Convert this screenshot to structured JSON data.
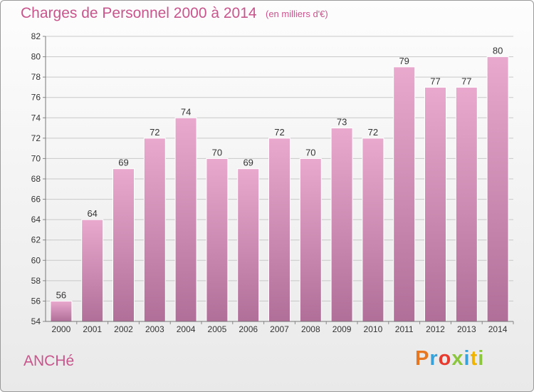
{
  "header": {
    "title": "Charges de Personnel 2000 à 2014",
    "subtitle": "(en milliers d'€)"
  },
  "footer": {
    "commune": "ANCHé",
    "logo_text": "Proxiti",
    "logo_colors": [
      "#e87722",
      "#3aa0d8",
      "#e63b2e",
      "#8cc63f",
      "#3aa0d8",
      "#f0b400",
      "#8cc63f"
    ]
  },
  "colors": {
    "bar_top": "#e9a9ce",
    "bar_bottom": "#b06f98",
    "title": "#c8558c"
  },
  "chart_data": {
    "type": "bar",
    "categories": [
      "2000",
      "2001",
      "2002",
      "2003",
      "2004",
      "2005",
      "2006",
      "2007",
      "2008",
      "2009",
      "2010",
      "2011",
      "2012",
      "2013",
      "2014"
    ],
    "values": [
      56,
      64,
      69,
      72,
      74,
      70,
      69,
      72,
      70,
      73,
      72,
      79,
      77,
      77,
      80
    ],
    "data_labels": [
      "56",
      "64",
      "69",
      "72",
      "74",
      "70",
      "69",
      "72",
      "70",
      "73",
      "72",
      "79",
      "77",
      "77",
      "80"
    ],
    "title": "Charges de Personnel 2000 à 2014",
    "subtitle": "(en milliers d'€)",
    "xlabel": "",
    "ylabel": "",
    "ylim": [
      54,
      82
    ],
    "yticks": [
      54,
      56,
      58,
      60,
      62,
      64,
      66,
      68,
      70,
      72,
      74,
      76,
      78,
      80,
      82
    ],
    "grid": true
  }
}
